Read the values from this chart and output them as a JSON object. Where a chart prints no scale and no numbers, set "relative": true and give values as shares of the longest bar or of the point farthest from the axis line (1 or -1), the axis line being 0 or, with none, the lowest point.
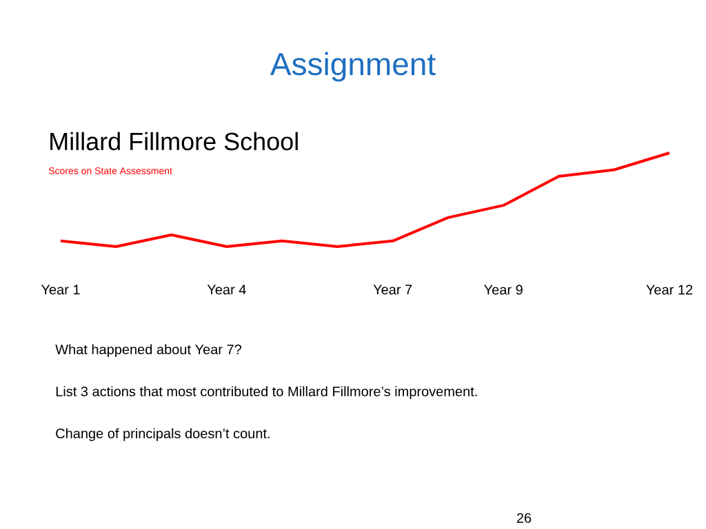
{
  "chart_data": {
    "type": "line",
    "title": "Assignment",
    "subtitle": "Millard Fillmore School",
    "categories": [
      "Year 1",
      null,
      null,
      "Year 4",
      null,
      null,
      "Year 7",
      null,
      "Year 9",
      null,
      null,
      "Year 12"
    ],
    "relative": true,
    "series": [
      {
        "color": "#ff0000",
        "values": [
          0.06,
          0,
          0.125,
          0,
          0.06,
          0,
          0.06,
          0.31,
          0.44,
          0.75,
          0.82,
          1
        ]
      }
    ],
    "annotations": [
      "Scores on State Assessment",
      "What happened about Year 7?",
      "List 3 actions that most contributed to Millard Fillmore’s improvement.",
      "Change of principals doesn’t count.",
      "26"
    ]
  }
}
